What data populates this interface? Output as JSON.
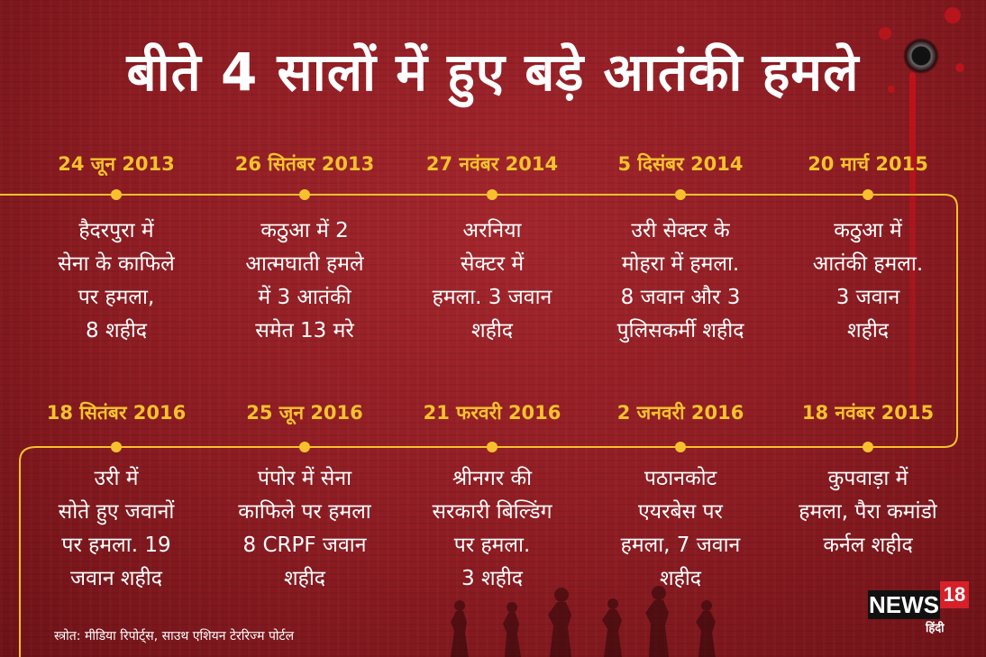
{
  "title": "बीते 4 सालों में हुए बड़े आतंकी हमले",
  "row_top": [
    {
      "date": "24 जून 2013",
      "lines": [
        "हैदरपुरा में",
        "सेना के काफिले",
        "पर हमला,",
        "8 शहीद"
      ]
    },
    {
      "date": "26 सितंबर 2013",
      "lines": [
        "कठुआ में 2",
        "आत्मघाती हमले",
        "में 3 आतंकी",
        "समेत 13 मरे"
      ]
    },
    {
      "date": "27 नवंबर 2014",
      "lines": [
        "अरनिया",
        "सेक्टर में",
        "हमला. 3 जवान",
        "शहीद"
      ]
    },
    {
      "date": "5 दिसंबर 2014",
      "lines": [
        "उरी सेक्टर के",
        "मोहरा में हमला.",
        "8 जवान और 3",
        "पुलिसकर्मी शहीद"
      ]
    },
    {
      "date": "20 मार्च 2015",
      "lines": [
        "कठुआ में",
        "आतंकी हमला.",
        "3 जवान",
        "शहीद"
      ]
    }
  ],
  "row_bottom": [
    {
      "date": "18 सितंबर 2016",
      "lines": [
        "उरी में",
        "सोते हुए जवानों",
        "पर हमला. 19",
        "जवान शहीद"
      ]
    },
    {
      "date": "25 जून 2016",
      "lines": [
        "पंपोर में सेना",
        "काफिले पर हमला",
        "8 CRPF जवान",
        "शहीद"
      ]
    },
    {
      "date": "21 फरवरी 2016",
      "lines": [
        "श्रीनगर की",
        "सरकारी बिल्डिंग",
        "पर हमला.",
        "3 शहीद"
      ]
    },
    {
      "date": "2 जनवरी 2016",
      "lines": [
        "पठानकोट",
        "एयरबेस पर",
        "हमला, 7 जवान",
        "शहीद"
      ]
    },
    {
      "date": "18 नवंबर 2015",
      "lines": [
        "कुपवाड़ा में",
        "हमला, पैरा कमांडो",
        "कर्नल शहीद"
      ]
    }
  ],
  "source": "स्त्रोत: मीडिया रिपोर्ट्स, साउथ एशियन टेररिज्म पोर्टल",
  "logo": {
    "brand": "NEWS",
    "number": "18",
    "sub": "हिंदी"
  },
  "colors": {
    "accent": "#f6c12d",
    "background": "#8c1c22",
    "logo_red": "#d6202a"
  }
}
